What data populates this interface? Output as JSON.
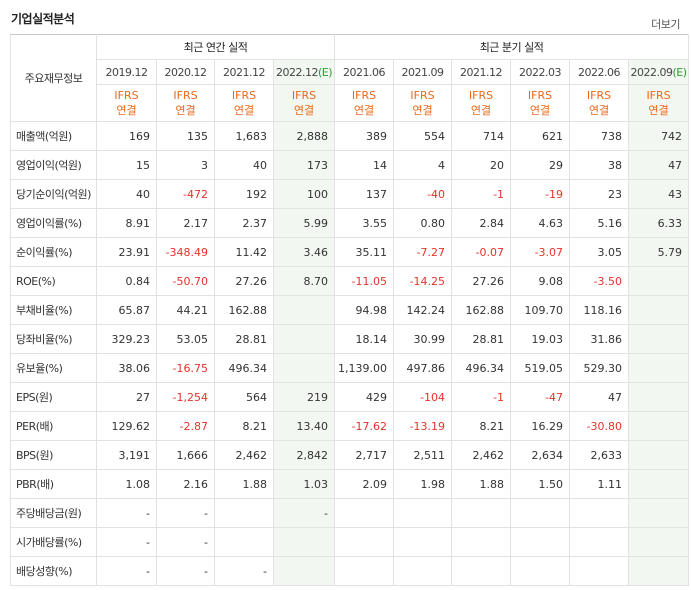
{
  "header": {
    "title": "기업실적분석",
    "more": "더보기"
  },
  "table": {
    "corner": "주요재무정보",
    "groups": {
      "annual": "최근 연간 실적",
      "quarter": "최근 분기 실적"
    },
    "annual_periods": [
      "2019.12",
      "2020.12",
      "2021.12",
      "2022.12"
    ],
    "quarter_periods": [
      "2021.06",
      "2021.09",
      "2021.12",
      "2022.03",
      "2022.06",
      "2022.09"
    ],
    "estimate_tag": "(E)",
    "ifrs_top": "IFRS",
    "ifrs_bottom": "연결",
    "rows": [
      {
        "label": "매출액(억원)",
        "values": [
          "169",
          "135",
          "1,683",
          "2,888",
          "389",
          "554",
          "714",
          "621",
          "738",
          "742"
        ]
      },
      {
        "label": "영업이익(억원)",
        "values": [
          "15",
          "3",
          "40",
          "173",
          "14",
          "4",
          "20",
          "29",
          "38",
          "47"
        ]
      },
      {
        "label": "당기순이익(억원)",
        "values": [
          "40",
          "-472",
          "192",
          "100",
          "137",
          "-40",
          "-1",
          "-19",
          "23",
          "43"
        ]
      },
      {
        "label": "영업이익률(%)",
        "values": [
          "8.91",
          "2.17",
          "2.37",
          "5.99",
          "3.55",
          "0.80",
          "2.84",
          "4.63",
          "5.16",
          "6.33"
        ]
      },
      {
        "label": "순이익률(%)",
        "values": [
          "23.91",
          "-348.49",
          "11.42",
          "3.46",
          "35.11",
          "-7.27",
          "-0.07",
          "-3.07",
          "3.05",
          "5.79"
        ]
      },
      {
        "label": "ROE(%)",
        "values": [
          "0.84",
          "-50.70",
          "27.26",
          "8.70",
          "-11.05",
          "-14.25",
          "27.26",
          "9.08",
          "-3.50",
          ""
        ]
      },
      {
        "label": "부채비율(%)",
        "values": [
          "65.87",
          "44.21",
          "162.88",
          "",
          "94.98",
          "142.24",
          "162.88",
          "109.70",
          "118.16",
          ""
        ]
      },
      {
        "label": "당좌비율(%)",
        "values": [
          "329.23",
          "53.05",
          "28.81",
          "",
          "18.14",
          "30.99",
          "28.81",
          "19.03",
          "31.86",
          ""
        ]
      },
      {
        "label": "유보율(%)",
        "values": [
          "38.06",
          "-16.75",
          "496.34",
          "",
          "1,139.00",
          "497.86",
          "496.34",
          "519.05",
          "529.30",
          ""
        ]
      },
      {
        "label": "EPS(원)",
        "values": [
          "27",
          "-1,254",
          "564",
          "219",
          "429",
          "-104",
          "-1",
          "-47",
          "47",
          ""
        ]
      },
      {
        "label": "PER(배)",
        "values": [
          "129.62",
          "-2.87",
          "8.21",
          "13.40",
          "-17.62",
          "-13.19",
          "8.21",
          "16.29",
          "-30.80",
          ""
        ]
      },
      {
        "label": "BPS(원)",
        "values": [
          "3,191",
          "1,666",
          "2,462",
          "2,842",
          "2,717",
          "2,511",
          "2,462",
          "2,634",
          "2,633",
          ""
        ]
      },
      {
        "label": "PBR(배)",
        "values": [
          "1.08",
          "2.16",
          "1.88",
          "1.03",
          "2.09",
          "1.98",
          "1.88",
          "1.50",
          "1.11",
          ""
        ]
      },
      {
        "label": "주당배당금(원)",
        "values": [
          "-",
          "-",
          "",
          "-",
          "",
          "",
          "",
          "",
          "",
          ""
        ]
      },
      {
        "label": "시가배당률(%)",
        "values": [
          "-",
          "-",
          "",
          "",
          "",
          "",
          "",
          "",
          "",
          ""
        ]
      },
      {
        "label": "배당성향(%)",
        "values": [
          "-",
          "-",
          "-",
          "",
          "",
          "",
          "",
          "",
          "",
          ""
        ]
      }
    ]
  },
  "colors": {
    "negative": "#e5322b",
    "ifrs": "#e9671b",
    "estimate": "#2f9a34",
    "estimate_bg": "#f2f8f1"
  }
}
